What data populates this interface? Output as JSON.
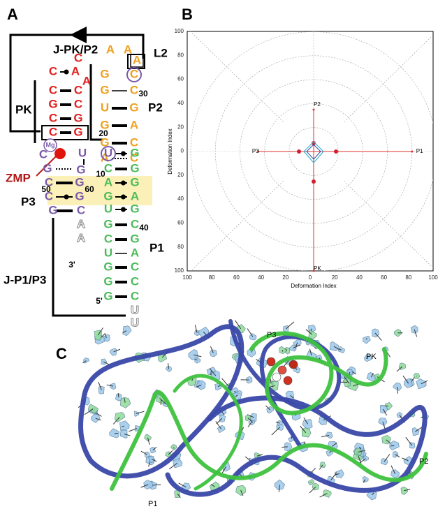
{
  "panel_a": {
    "panel_label": "A",
    "labels": {
      "j_pk_p2": "J-PK/P2",
      "l2": "L2",
      "pk": "PK",
      "p2": "P2",
      "mg": "Mg",
      "zmp": "ZMP",
      "p3": "P3",
      "p1": "P1",
      "j_p1_p3": "J-P1/P3"
    },
    "numbers": [
      "30",
      "20",
      "10",
      "50",
      "60",
      "40",
      "3'",
      "5'"
    ],
    "p2": [
      "A",
      "A",
      "G",
      "G",
      "U",
      "G",
      "G",
      "A",
      "A",
      "C",
      "C",
      "G",
      "A",
      "C",
      "C"
    ],
    "pk": [
      "C",
      "C",
      "G",
      "C",
      "C",
      "C",
      "A",
      "A",
      "C",
      "C",
      "G",
      "G"
    ],
    "p3": [
      "U",
      "C",
      "U",
      "G",
      "G",
      "C",
      "G",
      "C",
      "G",
      "G",
      "C"
    ],
    "p1": [
      "C",
      "A",
      "G",
      "U",
      "G",
      "C",
      "U",
      "G",
      "G",
      "G",
      "G",
      "G",
      "G",
      "A",
      "G",
      "C",
      "G",
      "A",
      "C",
      "C",
      "C"
    ],
    "overhangs": [
      "A",
      "A",
      "U",
      "U"
    ]
  },
  "panel_b": {
    "panel_label": "B",
    "x_axis_label": "Deformation Index",
    "y_axis_label": "Deformation Index",
    "xticks": [
      100,
      80,
      60,
      40,
      20,
      0,
      20,
      40,
      60,
      80,
      100
    ],
    "yticks": [
      100,
      80,
      60,
      40,
      20,
      0,
      20,
      40,
      60,
      80,
      100
    ],
    "arm_labels": [
      "P1",
      "P2",
      "P3",
      "PK"
    ]
  },
  "panel_c": {
    "panel_label": "C",
    "labels": [
      "P3",
      "PK",
      "P2",
      "P1"
    ]
  }
}
